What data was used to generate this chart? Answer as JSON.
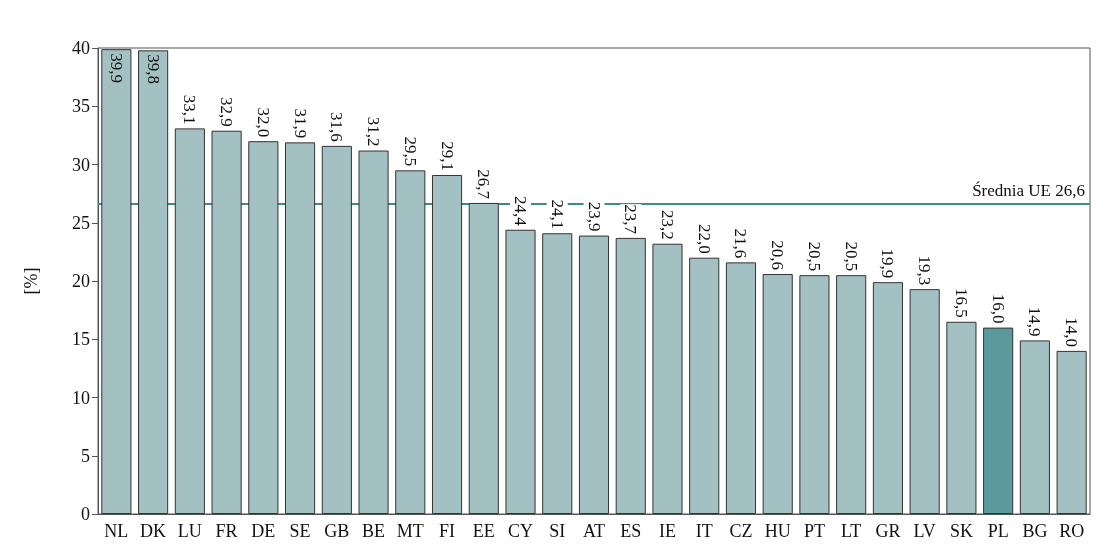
{
  "chart_data": {
    "type": "bar",
    "ylabel": "[%]",
    "categories": [
      "NL",
      "DK",
      "LU",
      "FR",
      "DE",
      "SE",
      "GB",
      "BE",
      "MT",
      "FI",
      "EE",
      "CY",
      "SI",
      "AT",
      "ES",
      "IE",
      "IT",
      "CZ",
      "HU",
      "PT",
      "LT",
      "GR",
      "LV",
      "SK",
      "PL",
      "BG",
      "RO"
    ],
    "values": [
      39.9,
      39.8,
      33.1,
      32.9,
      32.0,
      31.9,
      31.6,
      31.2,
      29.5,
      29.1,
      26.7,
      24.4,
      24.1,
      23.9,
      23.7,
      23.2,
      22.0,
      21.6,
      20.6,
      20.5,
      20.5,
      19.9,
      19.3,
      16.5,
      16.0,
      14.9,
      14.0
    ],
    "value_labels": [
      "39,9",
      "39,8",
      "33,1",
      "32,9",
      "32,0",
      "31,9",
      "31,6",
      "31,2",
      "29,5",
      "29,1",
      "26,7",
      "24,4",
      "24,1",
      "23,9",
      "23,7",
      "23,2",
      "22,0",
      "21,6",
      "20,6",
      "20,5",
      "20,5",
      "19,9",
      "19,3",
      "16,5",
      "16,0",
      "14,9",
      "14,0"
    ],
    "colors": [
      "#a3c1c3",
      "#a3c1c3",
      "#a3c1c3",
      "#a3c1c3",
      "#a3c1c3",
      "#a3c1c3",
      "#a3c1c3",
      "#a3c1c3",
      "#a3c1c3",
      "#a3c1c3",
      "#a3c1c3",
      "#a3c1c3",
      "#a3c1c3",
      "#a3c1c3",
      "#a3c1c3",
      "#a3c1c3",
      "#a3c1c3",
      "#a3c1c3",
      "#a3c1c3",
      "#a3c1c3",
      "#a3c1c3",
      "#a3c1c3",
      "#a3c1c3",
      "#a3c1c3",
      "#5b9a9c",
      "#a3c1c3",
      "#a3c1c3"
    ],
    "ylim": [
      0,
      40
    ],
    "yticks": [
      0,
      5,
      10,
      15,
      20,
      25,
      30,
      35,
      40
    ],
    "grid": false,
    "ref_lines": [
      {
        "axis": "y",
        "value": 26.6,
        "label": "Średnia UE 26,6",
        "color": "#3e8a8a"
      }
    ]
  }
}
